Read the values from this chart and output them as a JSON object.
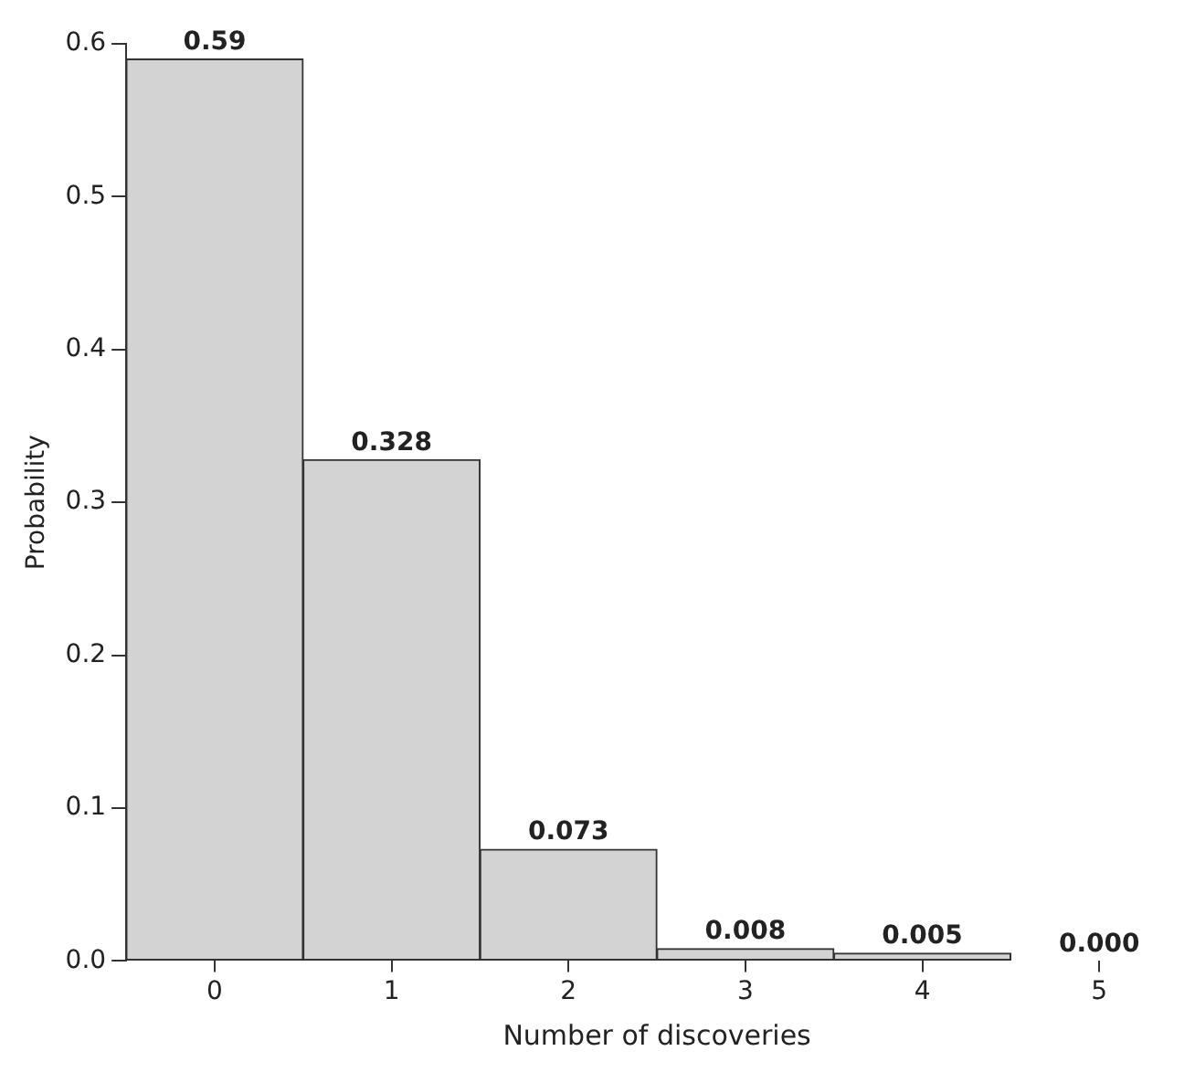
{
  "chart_data": {
    "type": "bar",
    "xlabel": "Number of discoveries",
    "ylabel": "Probability",
    "categories": [
      "0",
      "1",
      "2",
      "3",
      "4",
      "5"
    ],
    "values": [
      0.59,
      0.328,
      0.073,
      0.008,
      0.005,
      0.0
    ],
    "color": "#d3d3d3",
    "ylim": [
      0,
      0.6
    ],
    "yticks": [
      {
        "value": 0,
        "label": "0.0"
      },
      {
        "value": 0.1,
        "label": "0.1"
      },
      {
        "value": 0.2,
        "label": "0.2"
      },
      {
        "value": 0.3,
        "label": "0.3"
      },
      {
        "value": 0.4,
        "label": "0.4"
      },
      {
        "value": 0.5,
        "label": "0.5"
      },
      {
        "value": 0.6,
        "label": "0.6"
      }
    ],
    "value_labels": [
      "0.59",
      "0.328",
      "0.073",
      "0.008",
      "0.005",
      "0.000"
    ],
    "grid": false,
    "legend": false
  }
}
